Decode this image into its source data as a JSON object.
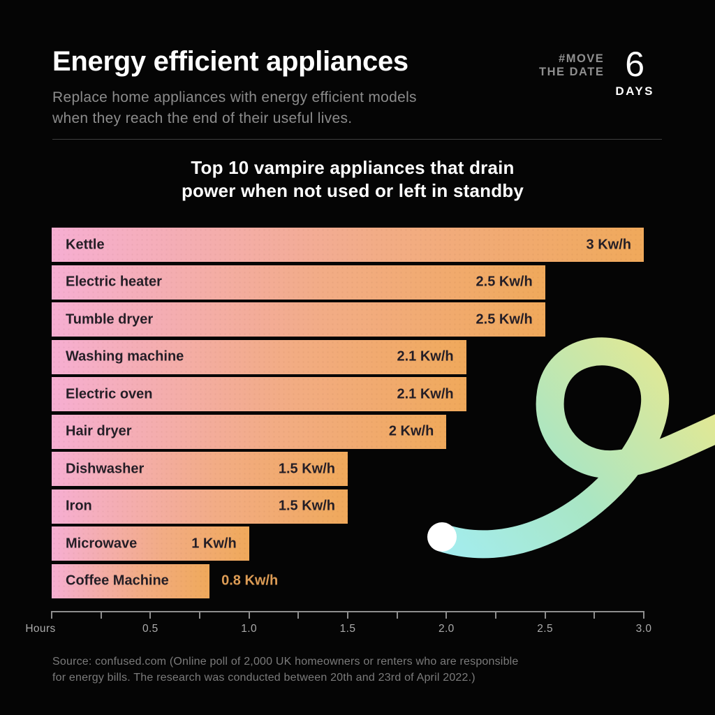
{
  "header": {
    "title": "Energy efficient appliances",
    "subtitle_lines": [
      "Replace home appliances with energy efficient models",
      "when they reach the end of their useful lives."
    ],
    "badge": {
      "hashtag_line1": "#MOVE",
      "hashtag_line2": "THE DATE",
      "number": "6",
      "unit": "DAYS"
    }
  },
  "chart_data": {
    "type": "bar",
    "orientation": "horizontal",
    "title": "Top 10 vampire appliances that drain power when not used or left in standby",
    "title_lines": [
      "Top 10 vampire appliances that drain",
      "power when not used or left in standby"
    ],
    "categories": [
      "Kettle",
      "Electric heater",
      "Tumble dryer",
      "Washing machine",
      "Electric oven",
      "Hair dryer",
      "Dishwasher",
      "Iron",
      "Microwave",
      "Coffee Machine"
    ],
    "values": [
      3,
      2.5,
      2.5,
      2.1,
      2.1,
      2,
      1.5,
      1.5,
      1,
      0.8
    ],
    "value_labels": [
      "3 Kw/h",
      "2.5 Kw/h",
      "2.5 Kw/h",
      "2.1 Kw/h",
      "2.1 Kw/h",
      "2 Kw/h",
      "1.5 Kw/h",
      "1.5 Kw/h",
      "1 Kw/h",
      "0.8 Kw/h"
    ],
    "value_label_outside": [
      false,
      false,
      false,
      false,
      false,
      false,
      false,
      false,
      false,
      true
    ],
    "xlabel": "Hours",
    "xlim": [
      0,
      3.0
    ],
    "x_tick_labels": [
      "0.5",
      "1.0",
      "1.5",
      "2.0",
      "2.5",
      "3.0"
    ],
    "minor_tick_step": 0.25,
    "grid": false,
    "legend": "none",
    "colors": {
      "bar_gradient_start": "#F6AED2",
      "bar_gradient_end": "#F0A95B",
      "bar_text": "#241E26",
      "outside_value_label": "#DD9C55",
      "axis": "#8E8E8E",
      "background": "#050505"
    }
  },
  "footer": {
    "source_lines": [
      "Source: confused.com (Online poll of 2,000 UK homeowners or renters who are responsible",
      "for energy bills. The research was conducted between 20th and 23rd of April 2022.)"
    ]
  },
  "decoration": {
    "squiggle_color_start": "#A3EDF1",
    "squiggle_color_mid": "#A9E6C4",
    "squiggle_color_end": "#E9E88E",
    "dot_color": "#FFFFFF"
  }
}
